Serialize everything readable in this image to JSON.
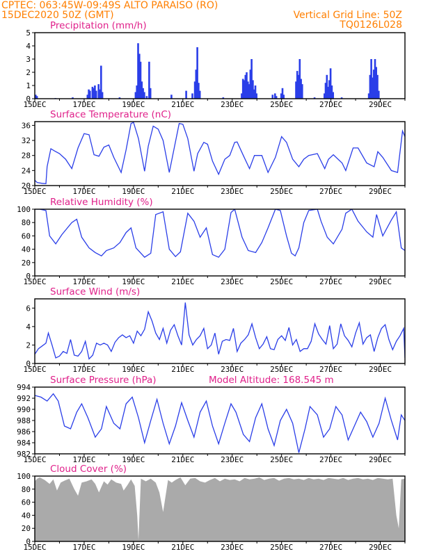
{
  "header": {
    "line1_left": "CPTEC:   063:45W-09:49S   ALTO PARAISO (RO)",
    "line2_left": "15DEC2020 50Z (GMT)",
    "line1_right": "Vertical Grid Line: 50Z",
    "line2_right": "TQ0126L028",
    "model_altitude": "Model Altitude: 168.545  m"
  },
  "colors": {
    "header": "#ff7f00",
    "panel_title": "#e0208a",
    "line": "#2a3ee8",
    "cloud": "#aaaaaa"
  },
  "chart_data": [
    {
      "type": "bar",
      "title": "Precipitation (mm/h)",
      "ylim": [
        0,
        5
      ],
      "yticks": [
        "0",
        "1",
        "2",
        "3",
        "4",
        "5"
      ],
      "xticks": [
        "15DEC",
        "17DEC",
        "19DEC",
        "21DEC",
        "23DEC",
        "25DEC",
        "27DEC",
        "29DEC"
      ],
      "x_start_day": 15,
      "x_end_day": 30,
      "bars": [
        {
          "day": 15.0,
          "value": 0.3
        },
        {
          "day": 15.05,
          "value": 0.2
        },
        {
          "day": 15.8,
          "value": 0.05
        },
        {
          "day": 16.5,
          "value": 0.1
        },
        {
          "day": 17.1,
          "value": 0.3
        },
        {
          "day": 17.15,
          "value": 0.7
        },
        {
          "day": 17.2,
          "value": 0.6
        },
        {
          "day": 17.3,
          "value": 0.9
        },
        {
          "day": 17.35,
          "value": 0.8
        },
        {
          "day": 17.4,
          "value": 1.0
        },
        {
          "day": 17.45,
          "value": 0.6
        },
        {
          "day": 17.55,
          "value": 1.1
        },
        {
          "day": 17.6,
          "value": 0.7
        },
        {
          "day": 17.65,
          "value": 2.5
        },
        {
          "day": 17.7,
          "value": 0.5
        },
        {
          "day": 18.4,
          "value": 0.1
        },
        {
          "day": 19.05,
          "value": 0.5
        },
        {
          "day": 19.1,
          "value": 1.0
        },
        {
          "day": 19.15,
          "value": 4.2
        },
        {
          "day": 19.2,
          "value": 3.4
        },
        {
          "day": 19.25,
          "value": 2.8
        },
        {
          "day": 19.3,
          "value": 1.3
        },
        {
          "day": 19.35,
          "value": 0.8
        },
        {
          "day": 19.4,
          "value": 0.5
        },
        {
          "day": 19.5,
          "value": 0.2
        },
        {
          "day": 19.6,
          "value": 2.8
        },
        {
          "day": 19.65,
          "value": 0.8
        },
        {
          "day": 20.5,
          "value": 0.3
        },
        {
          "day": 21.1,
          "value": 0.6
        },
        {
          "day": 21.35,
          "value": 0.4
        },
        {
          "day": 21.45,
          "value": 1.3
        },
        {
          "day": 21.5,
          "value": 2.2
        },
        {
          "day": 21.55,
          "value": 3.9
        },
        {
          "day": 21.6,
          "value": 1.2
        },
        {
          "day": 21.65,
          "value": 0.6
        },
        {
          "day": 22.6,
          "value": 0.1
        },
        {
          "day": 23.35,
          "value": 0.4
        },
        {
          "day": 23.4,
          "value": 1.5
        },
        {
          "day": 23.45,
          "value": 1.4
        },
        {
          "day": 23.5,
          "value": 1.8
        },
        {
          "day": 23.55,
          "value": 2.0
        },
        {
          "day": 23.6,
          "value": 1.3
        },
        {
          "day": 23.65,
          "value": 1.1
        },
        {
          "day": 23.7,
          "value": 2.2
        },
        {
          "day": 23.75,
          "value": 3.0
        },
        {
          "day": 23.8,
          "value": 1.4
        },
        {
          "day": 23.85,
          "value": 0.7
        },
        {
          "day": 23.9,
          "value": 1.0
        },
        {
          "day": 23.95,
          "value": 0.4
        },
        {
          "day": 24.6,
          "value": 0.3
        },
        {
          "day": 24.7,
          "value": 0.4
        },
        {
          "day": 24.75,
          "value": 0.2
        },
        {
          "day": 24.95,
          "value": 0.4
        },
        {
          "day": 25.0,
          "value": 0.8
        },
        {
          "day": 25.05,
          "value": 0.3
        },
        {
          "day": 25.55,
          "value": 1.3
        },
        {
          "day": 25.6,
          "value": 2.1
        },
        {
          "day": 25.65,
          "value": 1.8
        },
        {
          "day": 25.7,
          "value": 3.0
        },
        {
          "day": 25.75,
          "value": 1.5
        },
        {
          "day": 25.8,
          "value": 1.1
        },
        {
          "day": 26.3,
          "value": 0.1
        },
        {
          "day": 26.7,
          "value": 0.4
        },
        {
          "day": 26.75,
          "value": 1.2
        },
        {
          "day": 26.8,
          "value": 1.8
        },
        {
          "day": 26.85,
          "value": 0.9
        },
        {
          "day": 26.9,
          "value": 1.4
        },
        {
          "day": 26.95,
          "value": 2.3
        },
        {
          "day": 27.0,
          "value": 1.0
        },
        {
          "day": 27.05,
          "value": 0.5
        },
        {
          "day": 27.4,
          "value": 0.1
        },
        {
          "day": 28.5,
          "value": 0.4
        },
        {
          "day": 28.55,
          "value": 1.8
        },
        {
          "day": 28.6,
          "value": 3.0
        },
        {
          "day": 28.65,
          "value": 1.6
        },
        {
          "day": 28.7,
          "value": 2.2
        },
        {
          "day": 28.75,
          "value": 3.0
        },
        {
          "day": 28.8,
          "value": 2.4
        },
        {
          "day": 28.85,
          "value": 1.8
        },
        {
          "day": 28.9,
          "value": 0.6
        }
      ]
    },
    {
      "type": "line",
      "title": "Surface Temperature (nC)",
      "ylim": [
        20,
        37
      ],
      "yticks": [
        "20",
        "24",
        "28",
        "32",
        "36"
      ],
      "xticks": [
        "15DEC",
        "17DEC",
        "19DEC",
        "21DEC",
        "23DEC",
        "25DEC",
        "27DEC",
        "29DEC"
      ],
      "x_start_day": 15,
      "x_end_day": 30,
      "x": [
        15.0,
        15.1,
        15.3,
        15.45,
        15.5,
        15.65,
        15.8,
        16.0,
        16.25,
        16.5,
        16.75,
        17.0,
        17.2,
        17.4,
        17.6,
        17.8,
        18.0,
        18.2,
        18.5,
        18.7,
        18.9,
        19.0,
        19.2,
        19.45,
        19.6,
        19.8,
        20.0,
        20.2,
        20.45,
        20.65,
        20.85,
        21.0,
        21.2,
        21.45,
        21.6,
        21.85,
        22.0,
        22.2,
        22.45,
        22.7,
        22.9,
        23.1,
        23.2,
        23.45,
        23.7,
        23.9,
        24.2,
        24.45,
        24.75,
        25.0,
        25.2,
        25.45,
        25.7,
        25.9,
        26.1,
        26.45,
        26.75,
        26.9,
        27.1,
        27.45,
        27.6,
        27.9,
        28.1,
        28.45,
        28.75,
        28.9,
        29.1,
        29.45,
        29.7,
        29.9,
        30.0
      ],
      "y": [
        21.4,
        20.8,
        20.6,
        20.5,
        25.0,
        29.8,
        29.2,
        28.5,
        27.0,
        24.5,
        30.0,
        33.8,
        33.5,
        28.2,
        27.8,
        30.2,
        30.8,
        27.5,
        23.5,
        29.5,
        36.5,
        36.8,
        32.5,
        23.8,
        30.5,
        35.8,
        35.0,
        32.0,
        23.5,
        30.0,
        36.5,
        36.3,
        32.5,
        23.8,
        28.5,
        31.5,
        31.0,
        26.5,
        23.0,
        27.0,
        28.0,
        31.5,
        31.6,
        28.0,
        24.5,
        28.0,
        28.0,
        23.5,
        27.5,
        33.0,
        31.5,
        27.0,
        25.0,
        27.0,
        28.0,
        28.5,
        24.5,
        27.0,
        28.2,
        26.0,
        24.0,
        30.0,
        30.0,
        26.0,
        25.0,
        29.0,
        27.5,
        24.0,
        23.5,
        34.5,
        33.0
      ]
    },
    {
      "type": "line",
      "title": "Relative Humidity (%)",
      "ylim": [
        0,
        100
      ],
      "yticks": [
        "0",
        "20",
        "40",
        "60",
        "80",
        "100"
      ],
      "xticks": [
        "15DEC",
        "17DEC",
        "19DEC",
        "21DEC",
        "23DEC",
        "25DEC",
        "27DEC",
        "29DEC"
      ],
      "x_start_day": 15,
      "x_end_day": 30,
      "x": [
        15.0,
        15.2,
        15.45,
        15.6,
        15.85,
        16.1,
        16.5,
        16.7,
        16.9,
        17.2,
        17.45,
        17.7,
        17.9,
        18.2,
        18.45,
        18.7,
        18.9,
        19.1,
        19.45,
        19.7,
        19.9,
        20.2,
        20.45,
        20.7,
        20.9,
        21.2,
        21.45,
        21.7,
        21.95,
        22.2,
        22.45,
        22.7,
        22.95,
        23.1,
        23.4,
        23.65,
        23.95,
        24.2,
        24.45,
        24.75,
        24.95,
        25.2,
        25.4,
        25.55,
        25.7,
        25.9,
        26.1,
        26.45,
        26.6,
        26.85,
        27.1,
        27.45,
        27.6,
        27.85,
        28.1,
        28.45,
        28.7,
        28.85,
        29.1,
        29.45,
        29.65,
        29.85,
        30.0
      ],
      "y": [
        100,
        100,
        98,
        60,
        48,
        62,
        80,
        85,
        58,
        42,
        35,
        30,
        38,
        42,
        50,
        65,
        72,
        42,
        28,
        34,
        92,
        96,
        40,
        29,
        36,
        94,
        82,
        58,
        72,
        32,
        28,
        40,
        95,
        100,
        58,
        38,
        35,
        50,
        72,
        100,
        98,
        60,
        34,
        30,
        42,
        80,
        98,
        100,
        82,
        58,
        48,
        70,
        94,
        100,
        82,
        66,
        58,
        92,
        60,
        84,
        96,
        42,
        38
      ]
    },
    {
      "type": "line",
      "title": "Surface Wind (m/s)",
      "ylim": [
        0,
        7
      ],
      "yticks": [
        "0",
        "2",
        "4",
        "6"
      ],
      "xticks": [
        "15DEC",
        "17DEC",
        "19DEC",
        "21DEC",
        "23DEC",
        "25DEC",
        "27DEC",
        "29DEC"
      ],
      "x_start_day": 15,
      "x_end_day": 30,
      "x": [
        15.0,
        15.15,
        15.3,
        15.45,
        15.55,
        15.7,
        15.85,
        16.0,
        16.15,
        16.3,
        16.45,
        16.6,
        16.75,
        16.9,
        17.05,
        17.2,
        17.35,
        17.5,
        17.65,
        17.8,
        17.95,
        18.1,
        18.25,
        18.4,
        18.55,
        18.7,
        18.85,
        19.0,
        19.15,
        19.3,
        19.45,
        19.6,
        19.75,
        19.9,
        20.05,
        20.2,
        20.35,
        20.5,
        20.65,
        20.8,
        20.95,
        21.1,
        21.25,
        21.4,
        21.55,
        21.7,
        21.85,
        22.0,
        22.15,
        22.3,
        22.45,
        22.6,
        22.75,
        22.9,
        23.05,
        23.2,
        23.35,
        23.5,
        23.65,
        23.8,
        23.95,
        24.1,
        24.25,
        24.4,
        24.55,
        24.7,
        24.85,
        25.0,
        25.15,
        25.3,
        25.45,
        25.6,
        25.75,
        25.9,
        26.05,
        26.2,
        26.35,
        26.5,
        26.65,
        26.8,
        26.95,
        27.1,
        27.25,
        27.4,
        27.55,
        27.7,
        27.85,
        28.0,
        28.15,
        28.3,
        28.45,
        28.6,
        28.75,
        28.9,
        29.05,
        29.2,
        29.35,
        29.5,
        29.65,
        29.8,
        29.95,
        30.0
      ],
      "y": [
        1.0,
        1.6,
        1.9,
        2.2,
        3.3,
        2.0,
        0.6,
        0.8,
        1.3,
        1.1,
        2.6,
        0.9,
        0.8,
        1.3,
        2.4,
        0.5,
        0.9,
        2.2,
        2.0,
        2.2,
        2.0,
        1.3,
        2.3,
        2.8,
        3.1,
        2.8,
        3.0,
        2.2,
        3.5,
        3.0,
        3.7,
        5.6,
        4.6,
        3.3,
        2.6,
        3.8,
        2.2,
        3.6,
        4.2,
        3.0,
        2.0,
        6.6,
        3.1,
        2.0,
        2.6,
        3.0,
        3.8,
        1.6,
        2.0,
        3.3,
        1.0,
        2.4,
        2.6,
        2.5,
        3.8,
        1.3,
        2.2,
        2.6,
        3.1,
        4.3,
        2.8,
        1.6,
        2.1,
        2.9,
        1.6,
        1.5,
        2.6,
        3.0,
        2.5,
        3.9,
        2.0,
        2.6,
        1.3,
        1.6,
        1.6,
        2.4,
        4.3,
        3.2,
        2.6,
        2.1,
        4.1,
        1.6,
        2.1,
        4.3,
        3.0,
        2.5,
        1.8,
        3.3,
        4.4,
        2.1,
        2.8,
        3.1,
        1.3,
        2.8,
        3.8,
        4.2,
        2.6,
        1.5,
        2.4,
        3.0,
        3.8,
        0.6
      ]
    },
    {
      "type": "line",
      "title": "Surface Pressure (hPa)",
      "ylim": [
        982,
        994
      ],
      "yticks": [
        "982",
        "984",
        "986",
        "988",
        "990",
        "992",
        "994"
      ],
      "xticks": [
        "15DEC",
        "17DEC",
        "19DEC",
        "21DEC",
        "23DEC",
        "25DEC",
        "27DEC",
        "29DEC"
      ],
      "x_start_day": 15,
      "x_end_day": 30,
      "x": [
        15.0,
        15.25,
        15.5,
        15.75,
        15.95,
        16.2,
        16.45,
        16.7,
        16.9,
        17.15,
        17.45,
        17.7,
        17.9,
        18.2,
        18.45,
        18.7,
        18.95,
        19.2,
        19.45,
        19.7,
        19.95,
        20.2,
        20.45,
        20.7,
        20.95,
        21.2,
        21.45,
        21.7,
        21.95,
        22.2,
        22.45,
        22.7,
        22.95,
        23.15,
        23.45,
        23.7,
        23.95,
        24.2,
        24.45,
        24.7,
        24.95,
        25.2,
        25.45,
        25.7,
        25.95,
        26.15,
        26.45,
        26.7,
        26.95,
        27.2,
        27.45,
        27.7,
        27.95,
        28.2,
        28.45,
        28.7,
        28.95,
        29.2,
        29.45,
        29.7,
        29.85,
        30.0
      ],
      "y": [
        992.5,
        992.2,
        991.5,
        992.8,
        991.5,
        987.0,
        986.5,
        989.5,
        991.0,
        988.5,
        985.0,
        986.5,
        990.5,
        987.5,
        986.5,
        991.0,
        992.2,
        988.5,
        984.0,
        988.0,
        991.8,
        987.5,
        983.8,
        987.0,
        991.2,
        988.0,
        985.0,
        989.5,
        991.5,
        987.0,
        983.8,
        987.5,
        991.0,
        989.5,
        985.5,
        984.2,
        988.5,
        991.0,
        986.5,
        983.5,
        988.0,
        990.0,
        987.5,
        982.2,
        986.5,
        990.5,
        989.0,
        985.0,
        986.5,
        990.5,
        989.0,
        984.5,
        987.0,
        989.5,
        987.8,
        985.0,
        987.5,
        992.0,
        988.0,
        984.5,
        989.0,
        988.0
      ]
    },
    {
      "type": "area",
      "title": "Cloud Cover (%)",
      "ylim": [
        0,
        100
      ],
      "yticks": [
        "0",
        "20",
        "40",
        "60",
        "80",
        "100"
      ],
      "xticks": [
        "15DEC",
        "17DEC",
        "19DEC",
        "21DEC",
        "23DEC",
        "25DEC",
        "27DEC",
        "29DEC"
      ],
      "x_start_day": 15,
      "x_end_day": 30,
      "x": [
        15.0,
        15.1,
        15.2,
        15.4,
        15.6,
        15.75,
        15.9,
        16.05,
        16.2,
        16.4,
        16.6,
        16.75,
        16.9,
        17.1,
        17.3,
        17.45,
        17.6,
        17.8,
        17.95,
        18.1,
        18.3,
        18.5,
        18.6,
        18.75,
        18.9,
        19.05,
        19.15,
        19.2,
        19.3,
        19.5,
        19.7,
        19.9,
        20.05,
        20.2,
        20.4,
        20.55,
        20.7,
        20.9,
        21.0,
        21.1,
        21.3,
        21.5,
        21.7,
        21.9,
        22.1,
        22.3,
        22.5,
        22.7,
        22.9,
        23.1,
        23.3,
        23.5,
        23.7,
        23.9,
        24.1,
        24.3,
        24.5,
        24.7,
        24.9,
        25.1,
        25.3,
        25.5,
        25.7,
        25.9,
        26.1,
        26.3,
        26.5,
        26.7,
        26.9,
        27.1,
        27.3,
        27.5,
        27.7,
        27.9,
        28.1,
        28.3,
        28.5,
        28.7,
        28.9,
        29.1,
        29.3,
        29.5,
        29.65,
        29.75,
        29.85,
        30.0
      ],
      "y": [
        92,
        96,
        98,
        94,
        88,
        95,
        78,
        90,
        93,
        96,
        80,
        70,
        90,
        92,
        95,
        88,
        75,
        92,
        87,
        95,
        90,
        88,
        78,
        86,
        95,
        85,
        40,
        2,
        96,
        92,
        96,
        90,
        75,
        45,
        94,
        90,
        94,
        98,
        92,
        86,
        96,
        97,
        92,
        90,
        94,
        97,
        92,
        96,
        94,
        95,
        92,
        97,
        95,
        96,
        98,
        94,
        96,
        97,
        93,
        96,
        97,
        95,
        96,
        94,
        97,
        95,
        96,
        94,
        97,
        96,
        95,
        97,
        94,
        96,
        97,
        95,
        96,
        94,
        97,
        96,
        95,
        96,
        40,
        20,
        95,
        96
      ]
    }
  ]
}
